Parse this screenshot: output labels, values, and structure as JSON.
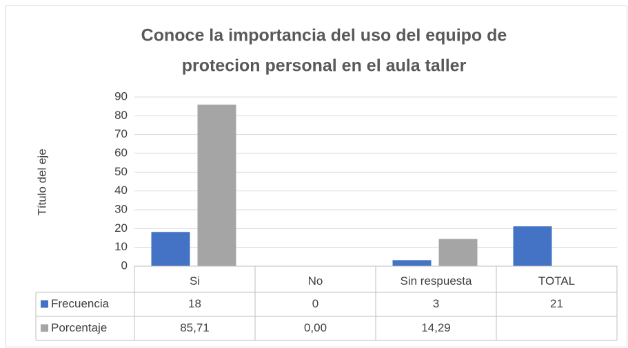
{
  "chart_data": {
    "type": "bar",
    "title": [
      "Conoce la importancia del uso del equipo de",
      "protecion personal en el aula taller"
    ],
    "y_label": "Título del eje",
    "categories": [
      "Si",
      "No",
      "Sin respuesta",
      "TOTAL"
    ],
    "series": [
      {
        "name": "Frecuencia",
        "color": "#4472c4",
        "values": [
          18,
          0,
          3,
          21
        ]
      },
      {
        "name": "Porcentaje",
        "color": "#a5a5a5",
        "values": [
          85.71,
          0.0,
          14.29,
          null
        ],
        "value_labels": [
          "85,71",
          "0,00",
          "14,29",
          null
        ]
      }
    ],
    "ylim": [
      0,
      90
    ],
    "yticks": [
      0,
      10,
      20,
      30,
      40,
      50,
      60,
      70,
      80,
      90
    ],
    "grid": true,
    "data_table": true
  }
}
